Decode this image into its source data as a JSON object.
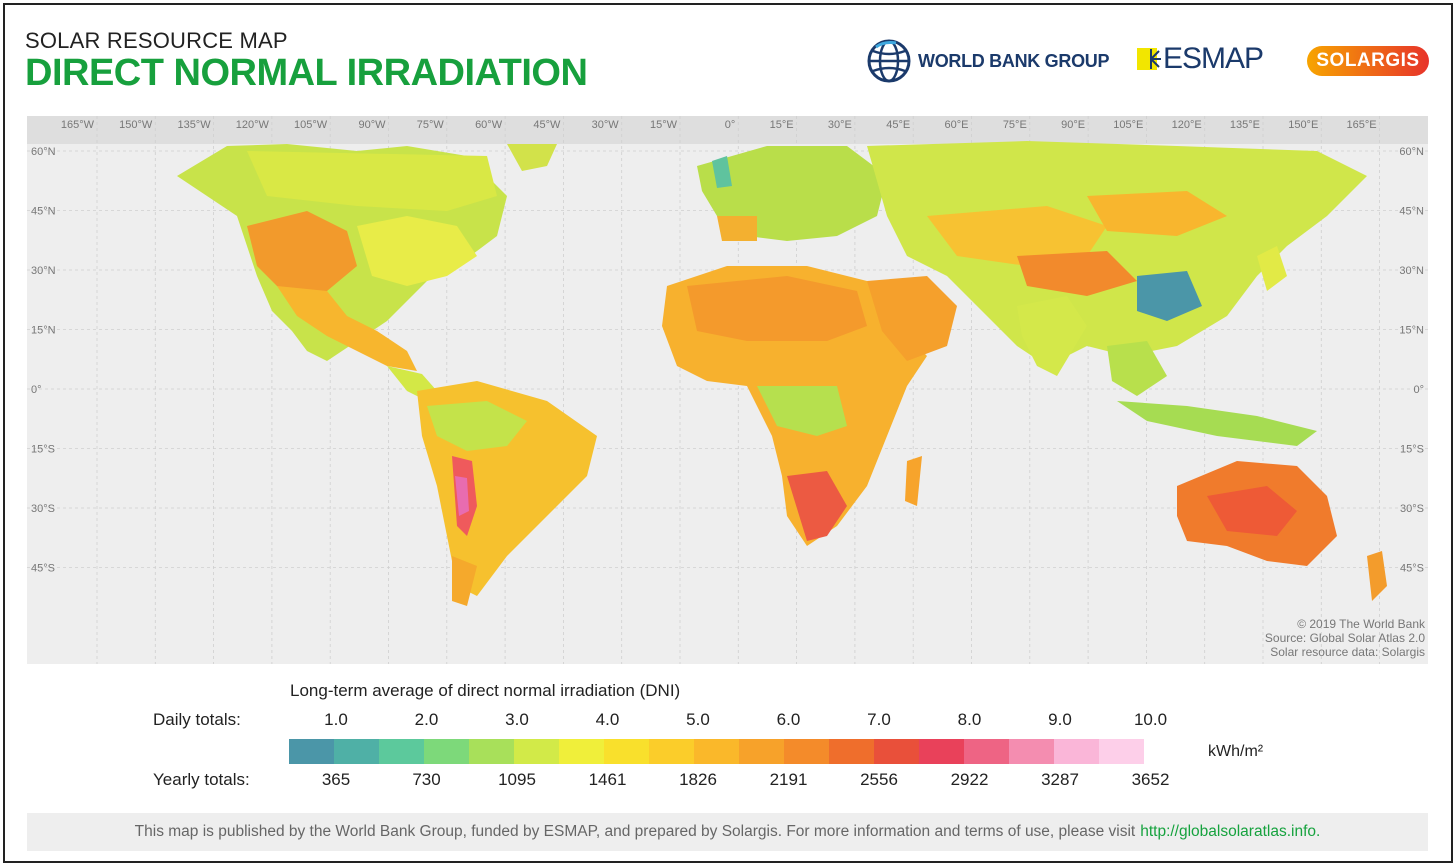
{
  "header": {
    "subtitle": "SOLAR RESOURCE MAP",
    "title": "DIRECT NORMAL IRRADIATION"
  },
  "logos": {
    "world_bank": "WORLD BANK GROUP",
    "esmap": "ESMAP",
    "solargis": "SOLARGIS"
  },
  "map": {
    "lon_labels": [
      "165°W",
      "150°W",
      "135°W",
      "120°W",
      "105°W",
      "90°W",
      "75°W",
      "60°W",
      "45°W",
      "30°W",
      "15°W",
      "0°",
      "15°E",
      "30°E",
      "45°E",
      "60°E",
      "75°E",
      "90°E",
      "105°E",
      "120°E",
      "135°E",
      "150°E",
      "165°E"
    ],
    "lat_labels": [
      "60°N",
      "45°N",
      "30°N",
      "15°N",
      "0°",
      "15°S",
      "30°S",
      "45°S"
    ],
    "credit": [
      "© 2019 The World Bank",
      "Source: Global Solar Atlas 2.0",
      "Solar resource data: Solargis"
    ]
  },
  "legend": {
    "title": "Long-term average of direct normal irradiation (DNI)",
    "daily_label": "Daily totals:",
    "yearly_label": "Yearly totals:",
    "daily_values": [
      "1.0",
      "2.0",
      "3.0",
      "4.0",
      "5.0",
      "6.0",
      "7.0",
      "8.0",
      "9.0",
      "10.0"
    ],
    "yearly_values": [
      "365",
      "730",
      "1095",
      "1461",
      "1826",
      "2191",
      "2556",
      "2922",
      "3287",
      "3652"
    ],
    "unit": "kWh/m²",
    "colors": [
      "#4b96a8",
      "#4fb0a6",
      "#5cc99c",
      "#7dd97a",
      "#a8e05a",
      "#d2ea48",
      "#f0ef3a",
      "#f9e02c",
      "#fbcd2a",
      "#fab82a",
      "#f7a22a",
      "#f48b2a",
      "#ef6e2c",
      "#e9503a",
      "#e9415a",
      "#ee6484",
      "#f48db0",
      "#fab6d8",
      "#fdcfe9"
    ]
  },
  "footer": {
    "text": "This map is published by the World Bank Group, funded by ESMAP, and prepared by Solargis. For more information and terms of use, please visit",
    "link": "http://globalsolaratlas.info."
  }
}
